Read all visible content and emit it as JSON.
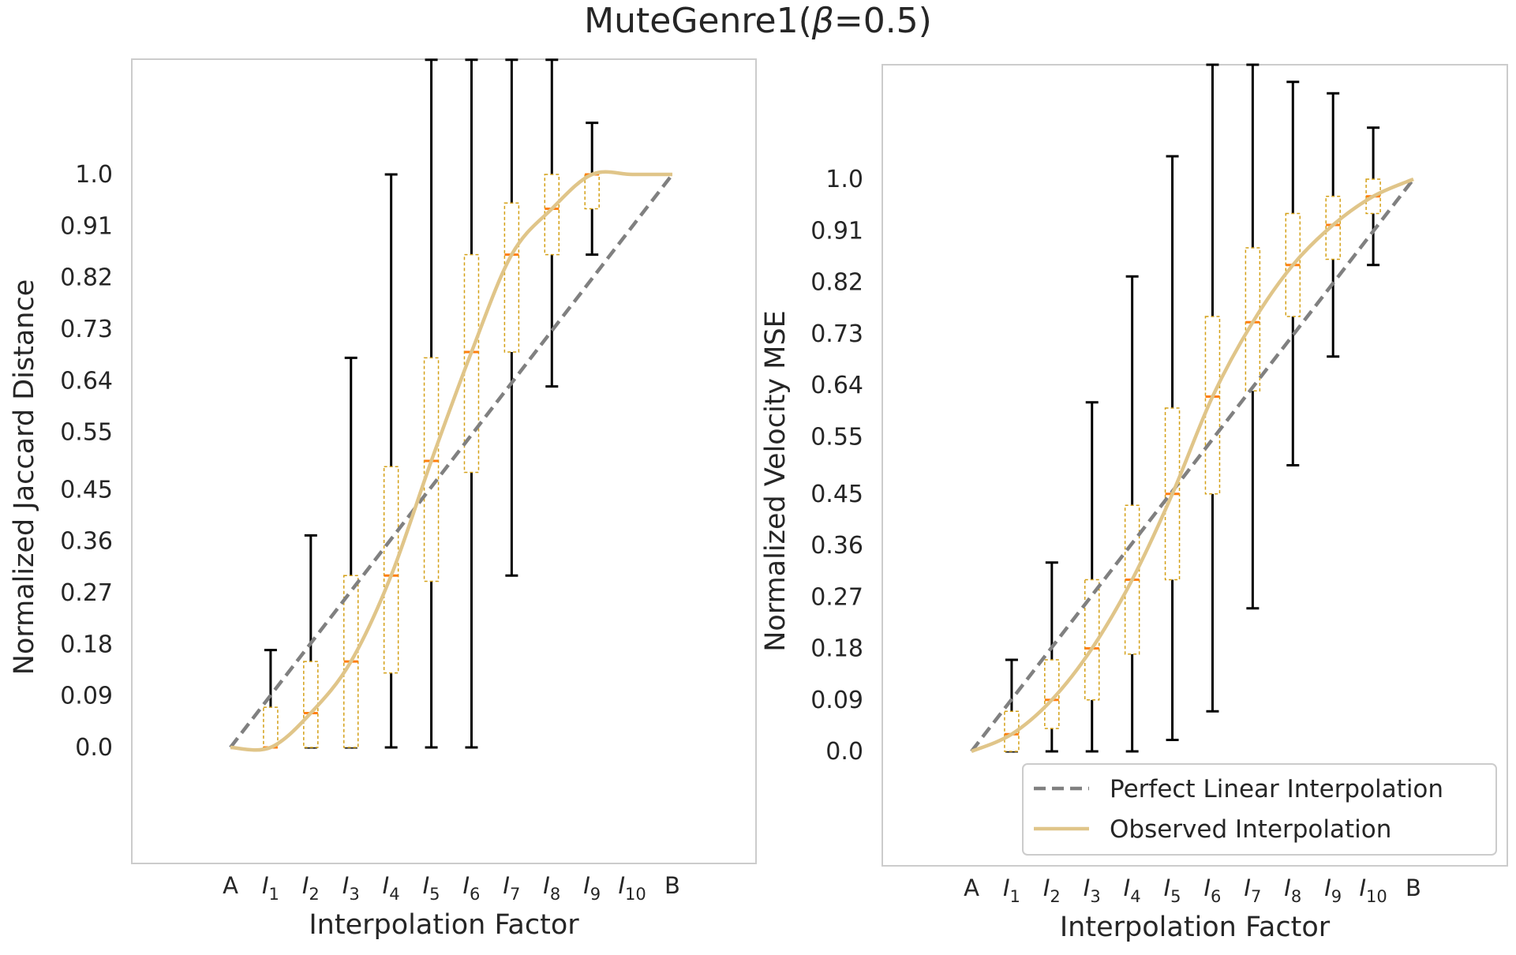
{
  "figure": {
    "title_prefix": "MuteGenre1(",
    "title_symbol": "β",
    "title_suffix": "=0.5)"
  },
  "colors": {
    "observed": "#e0c589",
    "linear": "#808080",
    "median": "#ff7f0e",
    "box_edge": "#d4a017",
    "whisker": "#000000",
    "axes_edge": "#cccccc"
  },
  "legend": {
    "placement": "lower-right of second panel",
    "entries": [
      {
        "label": "Perfect Linear Interpolation",
        "style": "dashed",
        "color": "#808080"
      },
      {
        "label": "Observed Interpolation",
        "style": "solid",
        "color": "#e0c589"
      }
    ]
  },
  "chart_data": [
    {
      "type": "box-and-line",
      "title": "",
      "xlabel": "Interpolation Factor",
      "ylabel": "Normalized Jaccard Distance",
      "categories": [
        "A",
        "I1",
        "I2",
        "I3",
        "I4",
        "I5",
        "I6",
        "I7",
        "I8",
        "I9",
        "I10",
        "B"
      ],
      "yticks": [
        "0.0",
        "0.09",
        "0.18",
        "0.27",
        "0.36",
        "0.45",
        "0.55",
        "0.64",
        "0.73",
        "0.82",
        "0.91",
        "1.0"
      ],
      "ylim": [
        -0.2,
        1.2
      ],
      "grid": false,
      "series": [
        {
          "name": "Perfect Linear Interpolation",
          "x": [
            0,
            11
          ],
          "values": [
            0.0,
            1.0
          ]
        },
        {
          "name": "Observed Interpolation",
          "values": [
            0.0,
            0.0,
            0.06,
            0.15,
            0.3,
            0.5,
            0.69,
            0.86,
            0.94,
            1.0,
            1.0,
            1.0
          ]
        }
      ],
      "boxes": [
        {
          "category": "I1",
          "median": 0.0,
          "q1": 0.0,
          "q3": 0.07,
          "whisker_low": 0.0,
          "whisker_high": 0.17
        },
        {
          "category": "I2",
          "median": 0.06,
          "q1": 0.0,
          "q3": 0.15,
          "whisker_low": 0.0,
          "whisker_high": 0.37
        },
        {
          "category": "I3",
          "median": 0.15,
          "q1": 0.0,
          "q3": 0.3,
          "whisker_low": 0.0,
          "whisker_high": 0.68
        },
        {
          "category": "I4",
          "median": 0.3,
          "q1": 0.13,
          "q3": 0.49,
          "whisker_low": 0.0,
          "whisker_high": 1.0
        },
        {
          "category": "I5",
          "median": 0.5,
          "q1": 0.29,
          "q3": 0.68,
          "whisker_low": 0.0,
          "whisker_high": 1.2
        },
        {
          "category": "I6",
          "median": 0.69,
          "q1": 0.48,
          "q3": 0.86,
          "whisker_low": 0.0,
          "whisker_high": 1.2
        },
        {
          "category": "I7",
          "median": 0.86,
          "q1": 0.69,
          "q3": 0.95,
          "whisker_low": 0.3,
          "whisker_high": 1.2
        },
        {
          "category": "I8",
          "median": 0.94,
          "q1": 0.86,
          "q3": 1.0,
          "whisker_low": 0.63,
          "whisker_high": 1.2
        },
        {
          "category": "I9",
          "median": 1.0,
          "q1": 0.94,
          "q3": 1.0,
          "whisker_low": 0.86,
          "whisker_high": 1.09
        },
        {
          "category": "I10",
          "median": 1.0,
          "q1": 1.0,
          "q3": 1.0,
          "whisker_low": 1.0,
          "whisker_high": 1.0
        }
      ]
    },
    {
      "type": "box-and-line",
      "title": "",
      "xlabel": "Interpolation Factor",
      "ylabel": "Normalized Velocity MSE",
      "categories": [
        "A",
        "I1",
        "I2",
        "I3",
        "I4",
        "I5",
        "I6",
        "I7",
        "I8",
        "I9",
        "I10",
        "B"
      ],
      "yticks": [
        "0.0",
        "0.09",
        "0.18",
        "0.27",
        "0.36",
        "0.45",
        "0.55",
        "0.64",
        "0.73",
        "0.82",
        "0.91",
        "1.0"
      ],
      "ylim": [
        -0.2,
        1.2
      ],
      "grid": false,
      "series": [
        {
          "name": "Perfect Linear Interpolation",
          "x": [
            0,
            11
          ],
          "values": [
            0.0,
            1.0
          ]
        },
        {
          "name": "Observed Interpolation",
          "values": [
            0.0,
            0.03,
            0.09,
            0.18,
            0.3,
            0.45,
            0.62,
            0.75,
            0.85,
            0.92,
            0.97,
            1.0
          ]
        }
      ],
      "boxes": [
        {
          "category": "I1",
          "median": 0.03,
          "q1": 0.0,
          "q3": 0.07,
          "whisker_low": 0.0,
          "whisker_high": 0.16
        },
        {
          "category": "I2",
          "median": 0.09,
          "q1": 0.04,
          "q3": 0.16,
          "whisker_low": 0.0,
          "whisker_high": 0.33
        },
        {
          "category": "I3",
          "median": 0.18,
          "q1": 0.09,
          "q3": 0.3,
          "whisker_low": 0.0,
          "whisker_high": 0.61
        },
        {
          "category": "I4",
          "median": 0.3,
          "q1": 0.17,
          "q3": 0.43,
          "whisker_low": 0.0,
          "whisker_high": 0.83
        },
        {
          "category": "I5",
          "median": 0.45,
          "q1": 0.3,
          "q3": 0.6,
          "whisker_low": 0.02,
          "whisker_high": 1.04
        },
        {
          "category": "I6",
          "median": 0.62,
          "q1": 0.45,
          "q3": 0.76,
          "whisker_low": 0.07,
          "whisker_high": 1.2
        },
        {
          "category": "I7",
          "median": 0.75,
          "q1": 0.63,
          "q3": 0.88,
          "whisker_low": 0.25,
          "whisker_high": 1.2
        },
        {
          "category": "I8",
          "median": 0.85,
          "q1": 0.76,
          "q3": 0.94,
          "whisker_low": 0.5,
          "whisker_high": 1.17
        },
        {
          "category": "I9",
          "median": 0.92,
          "q1": 0.86,
          "q3": 0.97,
          "whisker_low": 0.69,
          "whisker_high": 1.15
        },
        {
          "category": "I10",
          "median": 0.97,
          "q1": 0.94,
          "q3": 1.0,
          "whisker_low": 0.85,
          "whisker_high": 1.09
        }
      ]
    }
  ]
}
